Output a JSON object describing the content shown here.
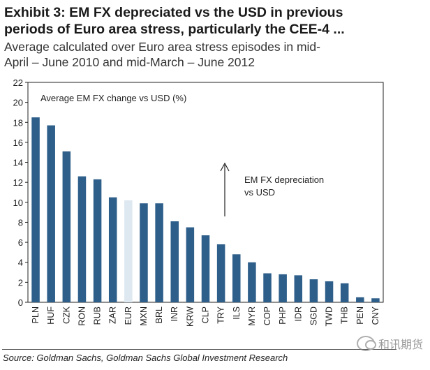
{
  "header": {
    "title_line1": "Exhibit 3: EM FX depreciated vs the USD in previous",
    "title_line2": "periods of Euro area stress, particularly the CEE-4 ...",
    "subtitle_line1": "Average calculated over Euro area stress episodes in mid-",
    "subtitle_line2": "April – June 2010 and mid-March – June 2012"
  },
  "source": "Source: Goldman Sachs, Goldman Sachs Global Investment Research",
  "watermark": "和讯期货",
  "chart_data": {
    "type": "bar",
    "title": "Average EM FX change vs USD (%)",
    "annotation_line1": "EM FX depreciation",
    "annotation_line2": "vs USD",
    "xlabel": "",
    "ylabel": "",
    "ylim": [
      0,
      22
    ],
    "yticks": [
      0,
      2,
      4,
      6,
      8,
      10,
      12,
      14,
      16,
      18,
      20,
      22
    ],
    "categories": [
      "PLN",
      "HUF",
      "CZK",
      "RON",
      "RUB",
      "ZAR",
      "EUR",
      "MXN",
      "BRL",
      "INR",
      "KRW",
      "CLP",
      "TRY",
      "ILS",
      "MYR",
      "COP",
      "PHP",
      "IDR",
      "SGD",
      "TWD",
      "THB",
      "PEN",
      "CNY"
    ],
    "values": [
      18.5,
      17.7,
      15.1,
      12.6,
      12.3,
      10.5,
      10.2,
      9.9,
      9.9,
      8.1,
      7.5,
      6.7,
      5.8,
      4.8,
      4.0,
      2.9,
      2.8,
      2.7,
      2.3,
      2.1,
      1.9,
      0.5,
      0.4
    ],
    "highlight_category": "EUR",
    "colors": {
      "bar": "#2e5f8a",
      "highlight": "#dde8f1",
      "axis": "#222222"
    },
    "grid": false
  }
}
